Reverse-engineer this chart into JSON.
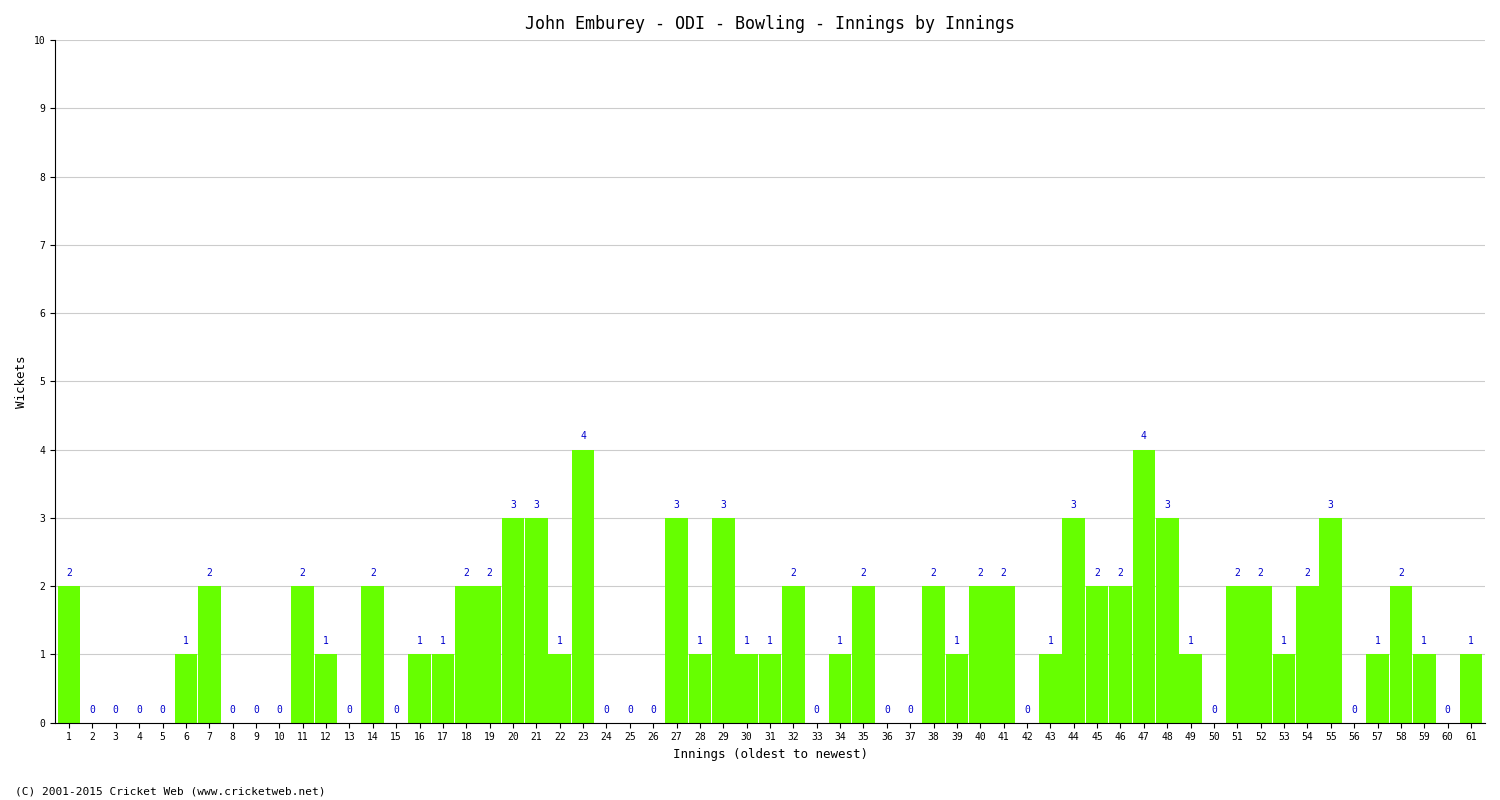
{
  "title": "John Emburey - ODI - Bowling - Innings by Innings",
  "xlabel": "Innings (oldest to newest)",
  "ylabel": "Wickets",
  "background_color": "#ffffff",
  "bar_color": "#66ff00",
  "label_color": "#0000cd",
  "ylim": [
    0,
    10
  ],
  "yticks": [
    0,
    1,
    2,
    3,
    4,
    5,
    6,
    7,
    8,
    9,
    10
  ],
  "wickets": [
    2,
    0,
    0,
    0,
    0,
    1,
    2,
    0,
    0,
    0,
    2,
    1,
    0,
    2,
    0,
    1,
    1,
    2,
    2,
    3,
    3,
    1,
    4,
    0,
    0,
    0,
    3,
    1,
    3,
    1,
    1,
    2,
    0,
    1,
    2,
    0,
    0,
    2,
    1,
    2,
    2,
    0,
    1,
    3,
    2,
    2,
    4,
    3,
    1,
    0,
    2,
    2,
    1,
    2,
    3,
    0,
    1,
    2,
    1,
    0,
    1
  ],
  "x_tick_labels": [
    "1",
    "2",
    "3",
    "4",
    "5",
    "6",
    "7",
    "8",
    "9",
    "10",
    "11",
    "12",
    "13",
    "14",
    "15",
    "16",
    "17",
    "18",
    "19",
    "20",
    "21",
    "22",
    "23",
    "24",
    "25",
    "26",
    "27",
    "28",
    "29",
    "30",
    "31",
    "32",
    "33",
    "34",
    "35",
    "36",
    "37",
    "38",
    "39",
    "40",
    "41",
    "42",
    "43",
    "44",
    "45",
    "46",
    "47",
    "48",
    "49",
    "50",
    "51",
    "52",
    "53",
    "54",
    "55",
    "56",
    "57",
    "58",
    "59",
    "60",
    "61"
  ],
  "footer": "(C) 2001-2015 Cricket Web (www.cricketweb.net)",
  "title_fontsize": 12,
  "axis_label_fontsize": 9,
  "tick_fontsize": 7,
  "bar_label_fontsize": 7,
  "footer_fontsize": 8
}
